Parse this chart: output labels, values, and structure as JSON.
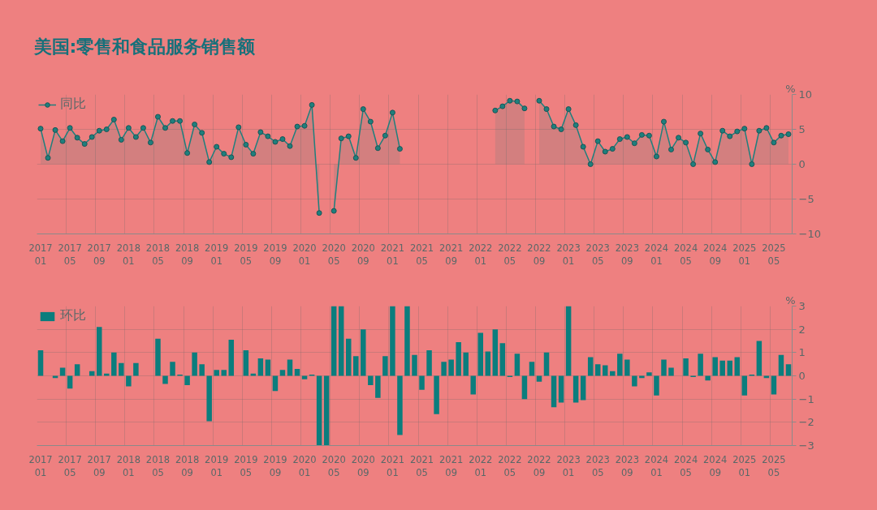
{
  "chart_data": [
    {
      "type": "area",
      "title": "美国:零售和食品服务销售额",
      "ylabel": "%",
      "marker": "circle",
      "grid": true,
      "legend": "top left",
      "ylim": [
        -10,
        10
      ],
      "yticks": [
        -10,
        -5,
        0,
        5,
        10
      ],
      "categories": [
        "2017 01",
        null,
        null,
        null,
        "2017 05",
        null,
        null,
        null,
        "2017 09",
        null,
        null,
        null,
        "2018 01",
        null,
        null,
        null,
        "2018 05",
        null,
        null,
        null,
        "2018 09",
        null,
        null,
        null,
        "2019 01",
        null,
        null,
        null,
        "2019 05",
        null,
        null,
        null,
        "2019 09",
        null,
        null,
        null,
        "2020 01",
        null,
        null,
        null,
        "2020 05",
        null,
        null,
        null,
        "2020 09",
        null,
        null,
        null,
        "2021 01",
        null,
        null,
        null,
        "2021 05",
        null,
        null,
        null,
        "2021 09",
        null,
        null,
        null,
        "2022 01",
        null,
        null,
        null,
        "2022 05",
        null,
        null,
        null,
        "2022 09",
        null,
        null,
        null,
        "2023 01",
        null,
        null,
        null,
        "2023 05",
        null,
        null,
        null,
        "2023 09",
        null,
        null,
        null,
        "2024 01",
        null,
        null,
        null,
        "2024 05",
        null,
        null,
        null,
        "2024 09",
        null,
        null,
        null,
        "2025 01",
        null,
        null,
        null,
        "2025 05",
        null,
        null
      ],
      "series": [
        {
          "name": "同比",
          "color": "#1f7f7d",
          "values": [
            5.1,
            0.9,
            4.9,
            3.3,
            5.2,
            3.8,
            2.9,
            3.9,
            4.8,
            5.0,
            6.4,
            3.5,
            5.2,
            3.9,
            5.2,
            3.1,
            6.8,
            5.2,
            6.2,
            6.2,
            1.6,
            5.7,
            4.5,
            0.3,
            2.5,
            1.5,
            1.0,
            5.3,
            2.8,
            1.5,
            4.6,
            4.0,
            3.2,
            3.6,
            2.6,
            5.4,
            5.5,
            8.5,
            -7.0,
            null,
            -6.7,
            3.7,
            4.0,
            0.9,
            7.9,
            6.1,
            2.3,
            4.1,
            7.4,
            2.2,
            null,
            null,
            null,
            null,
            null,
            null,
            null,
            null,
            null,
            null,
            null,
            null,
            7.7,
            8.3,
            9.1,
            9.0,
            8.0,
            null,
            9.1,
            7.9,
            5.4,
            5.0,
            7.9,
            5.6,
            2.5,
            0,
            3.3,
            1.8,
            2.2,
            3.6,
            3.9,
            3.0,
            4.2,
            4.1,
            1.1,
            6.1,
            2.1,
            3.8,
            3.1,
            0,
            4.4,
            2.1,
            0.3,
            4.8,
            4.0,
            4.7,
            5.1,
            0,
            4.8,
            5.2,
            3.1,
            4.1,
            4.3
          ]
        }
      ]
    },
    {
      "type": "bar",
      "ylabel": "%",
      "grid": true,
      "legend": "top left",
      "ylim": [
        -3,
        3
      ],
      "yticks": [
        -3,
        -2,
        -1,
        0,
        1,
        2,
        3
      ],
      "categories": [
        "2017 01",
        null,
        null,
        null,
        "2017 05",
        null,
        null,
        null,
        "2017 09",
        null,
        null,
        null,
        "2018 01",
        null,
        null,
        null,
        "2018 05",
        null,
        null,
        null,
        "2018 09",
        null,
        null,
        null,
        "2019 01",
        null,
        null,
        null,
        "2019 05",
        null,
        null,
        null,
        "2019 09",
        null,
        null,
        null,
        "2020 01",
        null,
        null,
        null,
        "2020 05",
        null,
        null,
        null,
        "2020 09",
        null,
        null,
        null,
        "2021 01",
        null,
        null,
        null,
        "2021 05",
        null,
        null,
        null,
        "2021 09",
        null,
        null,
        null,
        "2022 01",
        null,
        null,
        null,
        "2022 05",
        null,
        null,
        null,
        "2022 09",
        null,
        null,
        null,
        "2023 01",
        null,
        null,
        null,
        "2023 05",
        null,
        null,
        null,
        "2023 09",
        null,
        null,
        null,
        "2024 01",
        null,
        null,
        null,
        "2024 05",
        null,
        null,
        null,
        "2024 09",
        null,
        null,
        null,
        "2025 01",
        null,
        null,
        null,
        "2025 05",
        null,
        null
      ],
      "series": [
        {
          "name": "环比",
          "color": "#0b7d7d",
          "values": [
            1.1,
            0,
            -0.1,
            0.35,
            -0.55,
            0.5,
            0,
            0.2,
            2.1,
            0.1,
            1.0,
            0.55,
            -0.45,
            0.55,
            0,
            0,
            1.6,
            -0.35,
            0.6,
            0.05,
            -0.4,
            1.0,
            0.5,
            -1.95,
            0.25,
            0.25,
            1.55,
            0,
            1.1,
            0.1,
            0.75,
            0.7,
            -0.65,
            0.25,
            0.7,
            0.3,
            -0.15,
            0.05,
            -3,
            -3,
            3,
            3,
            1.6,
            0.85,
            2.0,
            -0.4,
            -0.95,
            0.85,
            3,
            -2.55,
            3,
            0.9,
            -0.6,
            1.1,
            -1.65,
            0.6,
            0.7,
            1.45,
            1.0,
            -0.8,
            1.85,
            1.05,
            2.0,
            1.4,
            -0.05,
            0.95,
            -1.0,
            0.6,
            -0.25,
            1.0,
            -1.35,
            -1.15,
            3.0,
            -1.15,
            -1.05,
            0.8,
            0.5,
            0.45,
            0.2,
            0.95,
            0.7,
            -0.45,
            -0.1,
            0.15,
            -0.85,
            0.7,
            0.35,
            0,
            0.75,
            -0.05,
            0.95,
            -0.2,
            0.8,
            0.65,
            0.65,
            0.8,
            -0.85,
            0.05,
            1.5,
            -0.1,
            -0.8,
            0.9,
            0.5
          ]
        }
      ]
    }
  ]
}
